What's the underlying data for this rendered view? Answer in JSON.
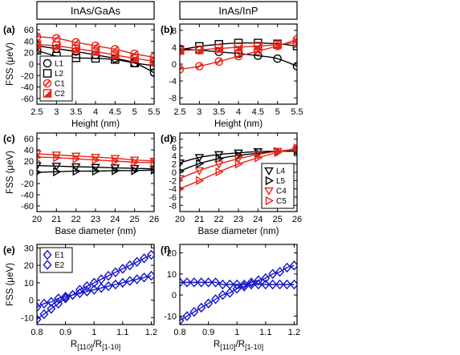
{
  "headers": {
    "left": "InAs/GaAs",
    "right": "InAs/InP"
  },
  "chart_data": [
    {
      "id": "a",
      "type": "line",
      "panel_label": "(a)",
      "xlabel": "Height (nm)",
      "ylabel": "FSS (μeV)",
      "xlim": [
        2.5,
        5.5
      ],
      "ylim": [
        -70,
        70
      ],
      "xticks": [
        2.5,
        3,
        3.5,
        4,
        4.5,
        5,
        5.5
      ],
      "xtick_labels": [
        "2.5",
        "3",
        "3.5",
        "4",
        "4.5",
        "5",
        "5.5"
      ],
      "yticks": [
        -60,
        -40,
        -20,
        0,
        20,
        40,
        60
      ],
      "ytick_labels": [
        "-60",
        "-40",
        "-20",
        "0",
        "20",
        "40",
        "60"
      ],
      "x": [
        2.5,
        3,
        3.5,
        4,
        4.5,
        5,
        5.5
      ],
      "legend": {
        "position": "bottom-left"
      },
      "series": [
        {
          "name": "L1",
          "marker": "circle",
          "color": "#000000",
          "values": [
            32,
            27,
            22,
            16,
            10,
            2,
            -15
          ]
        },
        {
          "name": "L2",
          "marker": "square",
          "color": "#000000",
          "values": [
            24,
            14,
            11,
            10,
            8,
            2,
            -3
          ]
        },
        {
          "name": "C1",
          "marker": "circle-slash",
          "color": "#e8251b",
          "values": [
            48,
            45,
            38,
            32,
            26,
            18,
            12
          ]
        },
        {
          "name": "C2",
          "marker": "square-slash",
          "color": "#e8251b",
          "values": [
            34,
            32,
            27,
            22,
            16,
            10,
            5
          ]
        }
      ]
    },
    {
      "id": "b",
      "type": "line",
      "panel_label": "(b)",
      "xlabel": "Height (nm)",
      "ylabel": "",
      "xlim": [
        2.5,
        5.5
      ],
      "ylim": [
        -9.5,
        9.5
      ],
      "xticks": [
        2.5,
        3,
        3.5,
        4,
        4.5,
        5,
        5.5
      ],
      "xtick_labels": [
        "2.5",
        "3",
        "3.5",
        "4",
        "4.5",
        "5",
        "5.5"
      ],
      "yticks": [
        -8,
        -4,
        0,
        4,
        8
      ],
      "ytick_labels": [
        "-8",
        "-4",
        "0",
        "4",
        "8"
      ],
      "x": [
        2.5,
        3,
        3.5,
        4,
        4.5,
        5,
        5.5
      ],
      "series": [
        {
          "name": "L1",
          "marker": "circle",
          "color": "#000000",
          "values": [
            3.6,
            3.3,
            2.9,
            2.5,
            2.0,
            1.3,
            -0.5
          ]
        },
        {
          "name": "L2",
          "marker": "square",
          "color": "#000000",
          "values": [
            3.4,
            4.2,
            4.7,
            5.0,
            5.0,
            4.8,
            4.3
          ]
        },
        {
          "name": "C1",
          "marker": "circle-slash",
          "color": "#e8251b",
          "values": [
            -1.2,
            -0.5,
            0.6,
            1.9,
            3.1,
            4.3,
            5.9
          ]
        },
        {
          "name": "C2",
          "marker": "square-slash",
          "color": "#e8251b",
          "values": [
            3.2,
            3.4,
            3.7,
            4.0,
            4.3,
            4.6,
            5.2
          ]
        }
      ]
    },
    {
      "id": "c",
      "type": "line",
      "panel_label": "(c)",
      "xlabel": "Base diameter (nm)",
      "ylabel": "FSS (μeV)",
      "xlim": [
        20,
        26
      ],
      "ylim": [
        -70,
        70
      ],
      "xticks": [
        20,
        21,
        22,
        23,
        24,
        25,
        26
      ],
      "xtick_labels": [
        "20",
        "21",
        "22",
        "23",
        "24",
        "25",
        "26"
      ],
      "yticks": [
        -60,
        -40,
        -20,
        0,
        20,
        40,
        60
      ],
      "ytick_labels": [
        "-60",
        "-40",
        "-20",
        "0",
        "20",
        "40",
        "60"
      ],
      "x": [
        20,
        21,
        22,
        23,
        24,
        25,
        26
      ],
      "series": [
        {
          "name": "L4",
          "marker": "triangle-down",
          "color": "#000000",
          "values": [
            12,
            11,
            10,
            9,
            8,
            7,
            6
          ]
        },
        {
          "name": "L5",
          "marker": "triangle-right",
          "color": "#000000",
          "values": [
            0,
            1,
            2,
            2,
            3,
            3,
            4
          ]
        },
        {
          "name": "C4",
          "marker": "triangle-down",
          "color": "#e8251b",
          "values": [
            33,
            31,
            29,
            27,
            25,
            22,
            20
          ]
        },
        {
          "name": "C5",
          "marker": "triangle-right",
          "color": "#e8251b",
          "values": [
            27,
            26,
            24,
            22,
            20,
            18,
            17
          ]
        }
      ]
    },
    {
      "id": "d",
      "type": "line",
      "panel_label": "(d)",
      "xlabel": "Base diameter (nm)",
      "ylabel": "",
      "xlim": [
        20,
        26
      ],
      "ylim": [
        -9.5,
        9.5
      ],
      "xticks": [
        20,
        21,
        22,
        23,
        24,
        25,
        26
      ],
      "xtick_labels": [
        "20",
        "21",
        "22",
        "23",
        "24",
        "25",
        "26"
      ],
      "yticks": [
        -8,
        -6,
        -4,
        -2,
        0,
        2,
        4,
        6,
        8
      ],
      "ytick_labels": [
        "-8",
        "-6",
        "-4",
        "-2",
        "0",
        "2",
        "4",
        "6",
        "8"
      ],
      "x": [
        20,
        21,
        22,
        23,
        24,
        25,
        26
      ],
      "legend": {
        "position": "bottom-right"
      },
      "series": [
        {
          "name": "L4",
          "marker": "triangle-down",
          "color": "#000000",
          "values": [
            2.3,
            3.6,
            4.3,
            4.7,
            5.0,
            5.1,
            5.1
          ]
        },
        {
          "name": "L5",
          "marker": "triangle-right",
          "color": "#000000",
          "values": [
            0.3,
            2.1,
            3.3,
            4.1,
            4.6,
            5.0,
            5.2
          ]
        },
        {
          "name": "C4",
          "marker": "triangle-down",
          "color": "#e8251b",
          "values": [
            -1.5,
            0.4,
            2.0,
            3.3,
            4.3,
            5.1,
            5.6
          ]
        },
        {
          "name": "C5",
          "marker": "triangle-right",
          "color": "#e8251b",
          "values": [
            -4.0,
            -2.0,
            0.1,
            2.0,
            3.5,
            4.8,
            5.9
          ]
        }
      ]
    },
    {
      "id": "e",
      "type": "line",
      "panel_label": "(e)",
      "xlabel_main": "R",
      "xlabel_sub1": "[110]",
      "xlabel_mid": "/R",
      "xlabel_sub2": "[1-10]",
      "ylabel": "FSS (μeV)",
      "xlim": [
        0.8,
        1.21
      ],
      "ylim": [
        -14,
        32
      ],
      "xticks": [
        0.8,
        0.9,
        1,
        1.1,
        1.2
      ],
      "xtick_labels": [
        "0.8",
        "0.9",
        "1",
        "1.1",
        "1.2"
      ],
      "yticks": [
        -10,
        0,
        10,
        20,
        30
      ],
      "ytick_labels": [
        "-10",
        "0",
        "10",
        "20",
        "30"
      ],
      "x": [
        0.8,
        0.825,
        0.85,
        0.875,
        0.9,
        0.925,
        0.95,
        0.975,
        1.0,
        1.025,
        1.05,
        1.075,
        1.1,
        1.125,
        1.15,
        1.175,
        1.2
      ],
      "legend": {
        "position": "top-left"
      },
      "series": [
        {
          "name": "E1",
          "marker": "diamond",
          "color": "#1414c8",
          "values": [
            -11,
            -8,
            -5,
            -2,
            1,
            3,
            6,
            8,
            10,
            12,
            14,
            16,
            18,
            20,
            22,
            24,
            26
          ]
        },
        {
          "name": "E2",
          "marker": "diamond",
          "color": "#1414c8",
          "values": [
            -4,
            -2,
            -1,
            1,
            2,
            3,
            4,
            5,
            6,
            7,
            8,
            9,
            10,
            11,
            12,
            13,
            14
          ]
        }
      ]
    },
    {
      "id": "f",
      "type": "line",
      "panel_label": "(f)",
      "xlabel_main": "R",
      "xlabel_sub1": "[110]",
      "xlabel_mid": "/R",
      "xlabel_sub2": "[1-10]",
      "ylabel": "",
      "xlim": [
        0.8,
        1.21
      ],
      "ylim": [
        -14,
        24
      ],
      "xticks": [
        0.8,
        0.9,
        1,
        1.1,
        1.2
      ],
      "xtick_labels": [
        "0.8",
        "0.9",
        "1",
        "1.1",
        "1.2"
      ],
      "yticks": [
        -10,
        0,
        10,
        20
      ],
      "ytick_labels": [
        "-10",
        "0",
        "10",
        "20"
      ],
      "x": [
        0.8,
        0.825,
        0.85,
        0.875,
        0.9,
        0.925,
        0.95,
        0.975,
        1.0,
        1.025,
        1.05,
        1.075,
        1.1,
        1.125,
        1.15,
        1.175,
        1.2
      ],
      "series": [
        {
          "name": "E1",
          "marker": "diamond",
          "color": "#1414c8",
          "values": [
            -12,
            -10,
            -8,
            -6,
            -4,
            -2,
            0,
            1,
            3,
            4,
            6,
            7,
            8,
            10,
            11,
            13,
            14
          ]
        },
        {
          "name": "E2",
          "marker": "diamond",
          "color": "#1414c8",
          "values": [
            6,
            6,
            6,
            6,
            6,
            6,
            5,
            5,
            5,
            5,
            5,
            5,
            5,
            5,
            5,
            5,
            5
          ]
        }
      ]
    }
  ]
}
